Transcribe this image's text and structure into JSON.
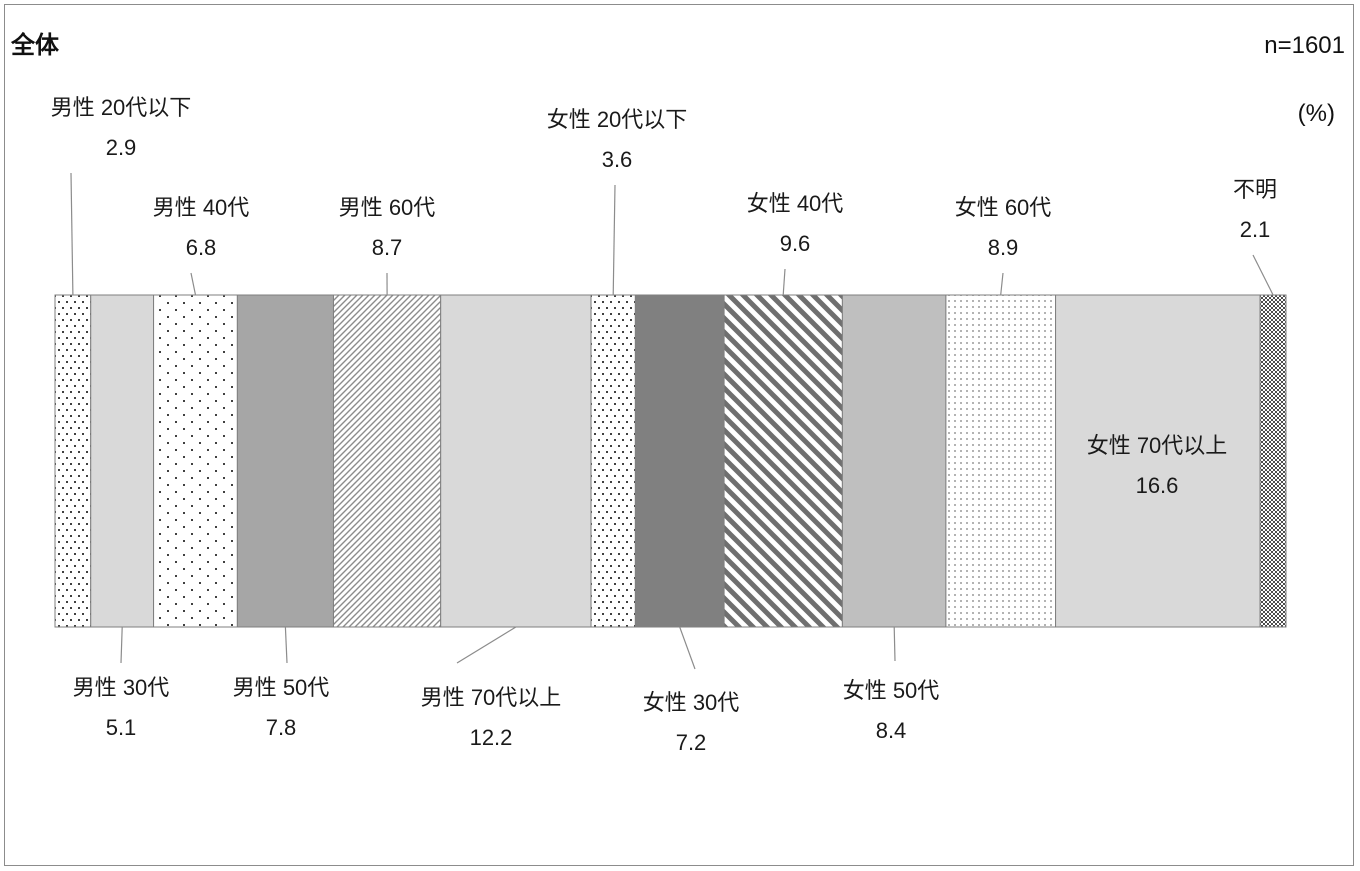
{
  "chart_data": {
    "type": "bar",
    "stacked": "100% horizontal",
    "title": "全体",
    "n_label": "n=1601",
    "unit_label": "(%)",
    "categories": [
      "男性 20代以下",
      "男性 30代",
      "男性 40代",
      "男性 50代",
      "男性 60代",
      "男性 70代以上",
      "女性 20代以下",
      "女性 30代",
      "女性 40代",
      "女性 50代",
      "女性 60代",
      "女性 70代以上",
      "不明"
    ],
    "values": [
      2.9,
      5.1,
      6.8,
      7.8,
      8.7,
      12.2,
      3.6,
      7.2,
      9.6,
      8.4,
      8.9,
      16.6,
      2.1
    ],
    "fills": [
      "dots-sparse",
      "#d9d9d9",
      "dots-wide",
      "#a6a6a6",
      "diag-fine",
      "#d9d9d9",
      "dots-sparse",
      "#808080",
      "diag-bold",
      "#bfbfbf",
      "dots-light",
      "#d9d9d9",
      "checker"
    ],
    "grid": false,
    "legend": "none"
  }
}
